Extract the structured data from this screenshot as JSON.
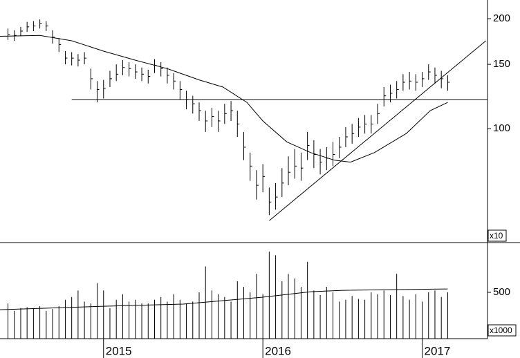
{
  "chart_data": [
    {
      "type": "ohlc",
      "log_scale": true,
      "color": "#000000",
      "x": [
        2014.4,
        2014.44,
        2014.48,
        2014.52,
        2014.56,
        2014.6,
        2014.64,
        2014.68,
        2014.72,
        2014.76,
        2014.8,
        2014.84,
        2014.88,
        2014.92,
        2014.96,
        2015.0,
        2015.04,
        2015.08,
        2015.12,
        2015.16,
        2015.2,
        2015.24,
        2015.28,
        2015.32,
        2015.36,
        2015.4,
        2015.44,
        2015.48,
        2015.52,
        2015.56,
        2015.6,
        2015.64,
        2015.68,
        2015.72,
        2015.76,
        2015.8,
        2015.84,
        2015.88,
        2015.92,
        2015.96,
        2016.0,
        2016.04,
        2016.08,
        2016.12,
        2016.16,
        2016.2,
        2016.24,
        2016.28,
        2016.32,
        2016.36,
        2016.4,
        2016.44,
        2016.48,
        2016.52,
        2016.56,
        2016.6,
        2016.64,
        2016.68,
        2016.72,
        2016.76,
        2016.8,
        2016.84,
        2016.88,
        2016.92,
        2016.96,
        2017.0,
        2017.04,
        2017.08,
        2017.12,
        2017.16
      ],
      "high": [
        188,
        186,
        190,
        196,
        197,
        199,
        197,
        186,
        177,
        163,
        162,
        160,
        162,
        146,
        135,
        136,
        144,
        150,
        154,
        152,
        150,
        147,
        145,
        155,
        152,
        147,
        142,
        135,
        127,
        123,
        118,
        112,
        114,
        112,
        117,
        119,
        112,
        98,
        86,
        77,
        80,
        69,
        71,
        78,
        84,
        88,
        86,
        98,
        93,
        88,
        89,
        92,
        95,
        101,
        103,
        107,
        109,
        109,
        117,
        130,
        132,
        135,
        141,
        143,
        141,
        143,
        150,
        147,
        144,
        140
      ],
      "low": [
        175,
        174,
        179,
        184,
        185,
        188,
        185,
        171,
        162,
        150,
        149,
        148,
        150,
        128,
        118,
        121,
        130,
        135,
        140,
        139,
        137,
        135,
        133,
        142,
        139,
        133,
        128,
        120,
        113,
        110,
        105,
        98,
        101,
        98,
        103,
        105,
        95,
        82,
        72,
        64,
        67,
        58,
        60,
        65,
        70,
        73,
        72,
        82,
        78,
        75,
        77,
        79,
        83,
        89,
        91,
        95,
        97,
        97,
        103,
        115,
        118,
        121,
        127,
        128,
        127,
        130,
        136,
        133,
        129,
        127
      ],
      "close": [
        181,
        180,
        185,
        190,
        191,
        194,
        191,
        178,
        170,
        156,
        156,
        154,
        156,
        137,
        128,
        129,
        137,
        141,
        147,
        146,
        143,
        141,
        139,
        149,
        146,
        140,
        135,
        128,
        120,
        117,
        112,
        105,
        108,
        105,
        110,
        112,
        103,
        89,
        79,
        70,
        74,
        63,
        65,
        71,
        76,
        79,
        78,
        90,
        85,
        81,
        83,
        85,
        89,
        95,
        97,
        101,
        103,
        103,
        110,
        123,
        125,
        128,
        134,
        135,
        134,
        137,
        143,
        140,
        137,
        134
      ],
      "moving_average": {
        "x": [
          2014.35,
          2014.6,
          2014.8,
          2015.0,
          2015.2,
          2015.4,
          2015.6,
          2015.75,
          2015.9,
          2016.0,
          2016.15,
          2016.3,
          2016.45,
          2016.55,
          2016.7,
          2016.9,
          2017.05,
          2017.16
        ],
        "values": [
          179,
          180,
          174,
          163,
          154,
          146,
          136,
          130,
          118,
          105,
          92,
          86,
          82,
          81,
          86,
          97,
          112,
          118
        ]
      },
      "lines": [
        {
          "x": [
            2014.8,
            2017.41
          ],
          "values": [
            120,
            120
          ]
        },
        {
          "x": [
            2016.04,
            2017.4
          ],
          "values": [
            56,
            174
          ]
        }
      ],
      "xlim": [
        2014.35,
        2017.41
      ],
      "ylim": [
        49,
        225
      ],
      "yticks": [
        100,
        150,
        200
      ],
      "unit_label": "x10"
    },
    {
      "type": "bar",
      "color": "#000000",
      "x": [
        2014.4,
        2014.44,
        2014.48,
        2014.52,
        2014.56,
        2014.6,
        2014.64,
        2014.68,
        2014.72,
        2014.76,
        2014.8,
        2014.84,
        2014.88,
        2014.92,
        2014.96,
        2015.0,
        2015.04,
        2015.08,
        2015.12,
        2015.16,
        2015.2,
        2015.24,
        2015.28,
        2015.32,
        2015.36,
        2015.4,
        2015.44,
        2015.48,
        2015.52,
        2015.56,
        2015.6,
        2015.64,
        2015.68,
        2015.72,
        2015.76,
        2015.8,
        2015.84,
        2015.88,
        2015.92,
        2015.96,
        2016.0,
        2016.04,
        2016.08,
        2016.12,
        2016.16,
        2016.2,
        2016.24,
        2016.28,
        2016.32,
        2016.36,
        2016.4,
        2016.44,
        2016.48,
        2016.52,
        2016.56,
        2016.6,
        2016.64,
        2016.68,
        2016.72,
        2016.76,
        2016.8,
        2016.84,
        2016.88,
        2016.92,
        2016.96,
        2017.0,
        2017.04,
        2017.08,
        2017.12,
        2017.16
      ],
      "values": [
        380,
        300,
        330,
        340,
        330,
        350,
        300,
        320,
        350,
        420,
        450,
        520,
        400,
        380,
        600,
        520,
        330,
        420,
        480,
        400,
        420,
        380,
        380,
        420,
        450,
        400,
        480,
        420,
        380,
        400,
        500,
        780,
        520,
        480,
        450,
        400,
        620,
        560,
        500,
        700,
        480,
        940,
        900,
        620,
        700,
        650,
        560,
        830,
        520,
        470,
        560,
        500,
        400,
        420,
        460,
        430,
        420,
        500,
        480,
        520,
        470,
        700,
        460,
        420,
        480,
        400,
        500,
        520,
        450,
        500
      ],
      "moving_average": {
        "x": [
          2014.35,
          2015.0,
          2015.5,
          2016.0,
          2016.3,
          2016.5,
          2017.16
        ],
        "values": [
          313,
          350,
          373,
          448,
          507,
          522,
          537
        ]
      },
      "xlim": [
        2014.35,
        2017.41
      ],
      "ylim": [
        0,
        1030
      ],
      "yticks": [
        500
      ],
      "xticks": [
        2015,
        2016,
        2017
      ],
      "unit_label": "x1000"
    }
  ]
}
